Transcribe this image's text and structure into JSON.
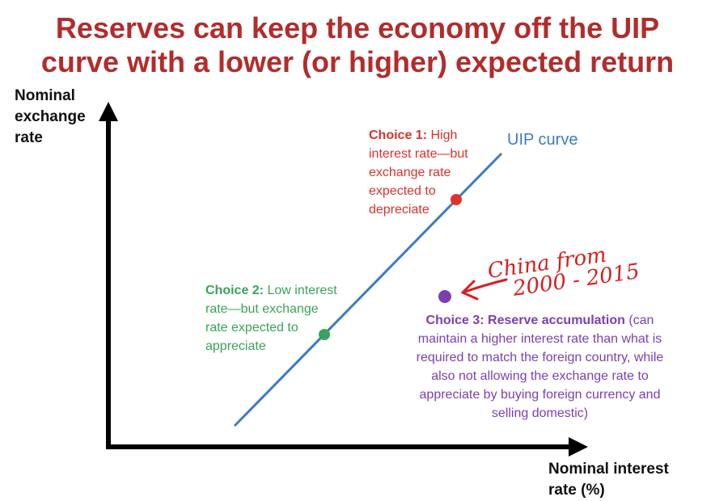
{
  "title": {
    "line1": "Reserves can keep the economy off the UIP",
    "line2": "curve with a lower (or higher) expected return"
  },
  "axes": {
    "y_label": [
      "Nominal",
      "exchange",
      "rate"
    ],
    "x_label": [
      "Nominal interest",
      "rate (%)"
    ]
  },
  "curve_label": "UIP curve",
  "choices": [
    {
      "heading": "Choice 1:",
      "lines": [
        "High",
        "interest rate—but",
        "exchange rate",
        "expected to",
        "depreciate"
      ],
      "color": "#d9322c"
    },
    {
      "heading": "Choice 2:",
      "lines": [
        "Low interest",
        "rate—but exchange",
        "rate expected to",
        "appreciate"
      ],
      "color": "#3aa35a"
    },
    {
      "heading": "Choice 3: Reserve accumulation",
      "lines": [
        "(can",
        "maintain a higher interest rate than what is",
        "required to match the foreign country, while",
        "also not allowing the exchange rate to",
        "appreciate by buying foreign currency and",
        "selling domestic)"
      ],
      "color": "#7b3fb0"
    }
  ],
  "annotation": {
    "lines": [
      "China from",
      "2000 - 2015"
    ],
    "color": "#d61f1f"
  },
  "colors": {
    "title": "#b22c2c",
    "curve": "#3d7bbf",
    "axis": "#000000"
  }
}
